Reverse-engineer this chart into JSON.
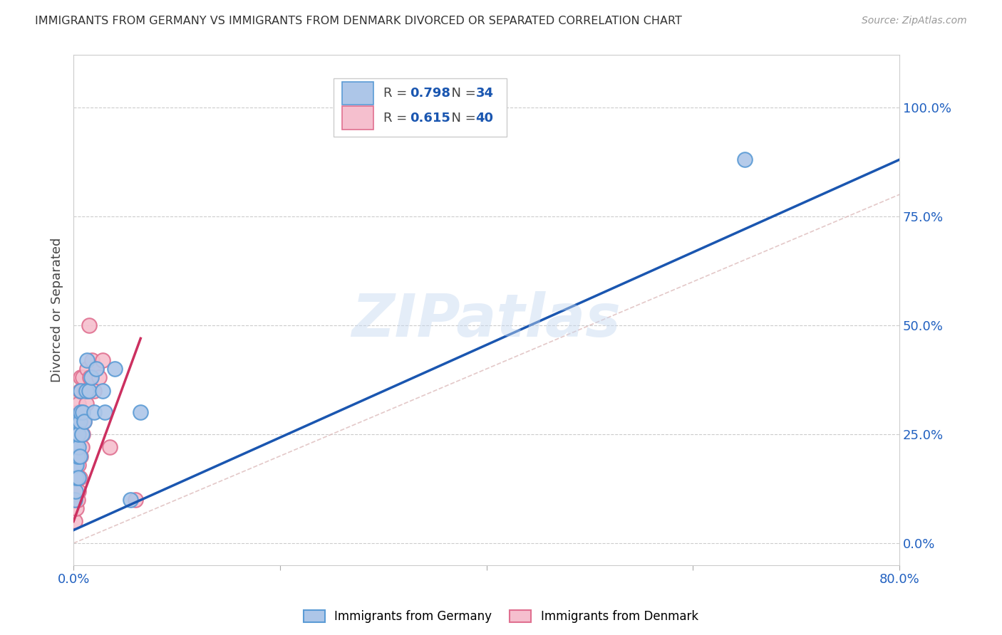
{
  "title": "IMMIGRANTS FROM GERMANY VS IMMIGRANTS FROM DENMARK DIVORCED OR SEPARATED CORRELATION CHART",
  "source": "Source: ZipAtlas.com",
  "ylabel": "Divorced or Separated",
  "xlim": [
    0.0,
    0.8
  ],
  "ylim": [
    -0.05,
    1.12
  ],
  "y_ticks_right": [
    0.0,
    0.25,
    0.5,
    0.75,
    1.0
  ],
  "y_tick_labels_right": [
    "0.0%",
    "25.0%",
    "50.0%",
    "75.0%",
    "100.0%"
  ],
  "germany_color": "#adc6e8",
  "germany_edge_color": "#5b9bd5",
  "denmark_color": "#f5bfce",
  "denmark_edge_color": "#e07090",
  "germany_R": 0.798,
  "germany_N": 34,
  "denmark_R": 0.615,
  "denmark_N": 40,
  "germany_line_color": "#1a56b0",
  "denmark_line_color": "#cc3060",
  "diagonal_color": "#cccccc",
  "watermark": "ZIPatlas",
  "R_N_color": "#1a56b0",
  "germany_x": [
    0.001,
    0.001,
    0.002,
    0.002,
    0.002,
    0.003,
    0.003,
    0.003,
    0.004,
    0.004,
    0.004,
    0.005,
    0.005,
    0.005,
    0.006,
    0.006,
    0.007,
    0.007,
    0.008,
    0.009,
    0.01,
    0.012,
    0.013,
    0.015,
    0.017,
    0.02,
    0.022,
    0.028,
    0.03,
    0.04,
    0.055,
    0.065,
    0.38,
    0.65
  ],
  "germany_y": [
    0.1,
    0.15,
    0.12,
    0.18,
    0.2,
    0.15,
    0.18,
    0.22,
    0.2,
    0.25,
    0.28,
    0.15,
    0.22,
    0.25,
    0.2,
    0.28,
    0.3,
    0.35,
    0.25,
    0.3,
    0.28,
    0.35,
    0.42,
    0.35,
    0.38,
    0.3,
    0.4,
    0.35,
    0.3,
    0.4,
    0.1,
    0.3,
    0.98,
    0.88
  ],
  "denmark_x": [
    0.001,
    0.001,
    0.001,
    0.002,
    0.002,
    0.002,
    0.003,
    0.003,
    0.003,
    0.004,
    0.004,
    0.004,
    0.005,
    0.005,
    0.005,
    0.005,
    0.006,
    0.006,
    0.006,
    0.007,
    0.007,
    0.007,
    0.008,
    0.008,
    0.009,
    0.009,
    0.01,
    0.011,
    0.012,
    0.013,
    0.014,
    0.015,
    0.016,
    0.018,
    0.02,
    0.022,
    0.025,
    0.028,
    0.035,
    0.06
  ],
  "denmark_y": [
    0.05,
    0.1,
    0.15,
    0.12,
    0.18,
    0.22,
    0.08,
    0.15,
    0.25,
    0.1,
    0.2,
    0.3,
    0.12,
    0.18,
    0.25,
    0.32,
    0.15,
    0.25,
    0.35,
    0.2,
    0.28,
    0.38,
    0.22,
    0.3,
    0.25,
    0.38,
    0.28,
    0.35,
    0.32,
    0.4,
    0.35,
    0.5,
    0.38,
    0.42,
    0.35,
    0.4,
    0.38,
    0.42,
    0.22,
    0.1
  ],
  "germany_line_x": [
    0.0,
    0.8
  ],
  "germany_line_y": [
    0.03,
    0.88
  ],
  "denmark_line_x": [
    0.0,
    0.065
  ],
  "denmark_line_y": [
    0.05,
    0.47
  ]
}
